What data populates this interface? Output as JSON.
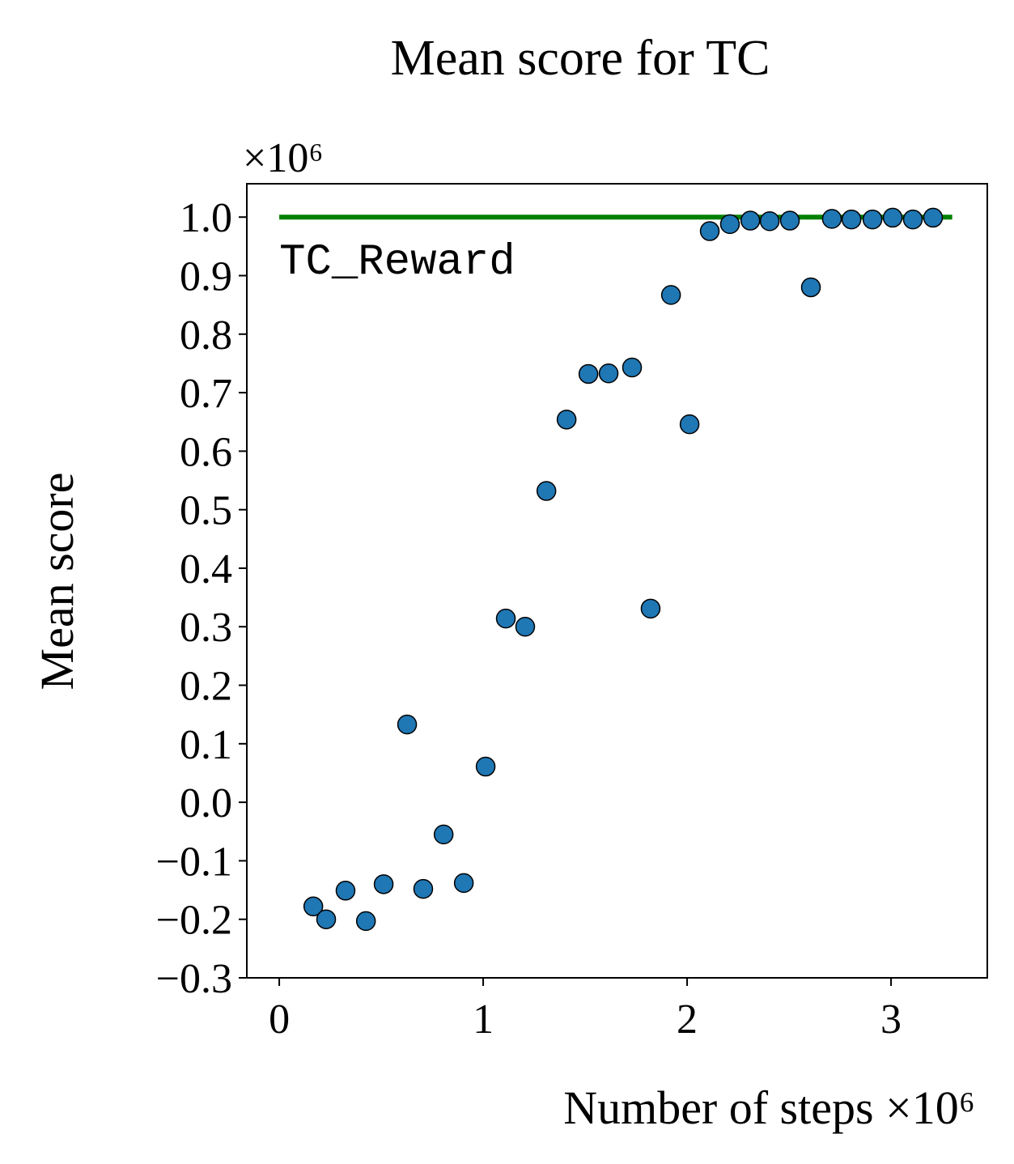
{
  "chart_data": {
    "type": "scatter",
    "title": "Mean score for TC",
    "x_label": "Number of steps ×10⁶",
    "y_label": "Mean score",
    "y_offset_text": "×10⁶",
    "xlim": [
      -0.159,
      3.472
    ],
    "ylim": [
      -0.3,
      1.057
    ],
    "xticks": [
      0,
      1,
      2,
      3
    ],
    "yticks": [
      {
        "value": -0.3,
        "label": "−0.3"
      },
      {
        "value": -0.2,
        "label": "−0.2"
      },
      {
        "value": -0.1,
        "label": "−0.1"
      },
      {
        "value": 0,
        "label": "0.0"
      },
      {
        "value": 0.1,
        "label": "0.1"
      },
      {
        "value": 0.2,
        "label": "0.2"
      },
      {
        "value": 0.3,
        "label": "0.3"
      },
      {
        "value": 0.4,
        "label": "0.4"
      },
      {
        "value": 0.5,
        "label": "0.5"
      },
      {
        "value": 0.6,
        "label": "0.6"
      },
      {
        "value": 0.7,
        "label": "0.7"
      },
      {
        "value": 0.8,
        "label": "0.8"
      },
      {
        "value": 0.9,
        "label": "0.9"
      },
      {
        "value": 1,
        "label": "1.0"
      }
    ],
    "color": "#1f77b4",
    "x": [
      0.167,
      0.23,
      0.325,
      0.425,
      0.512,
      0.627,
      0.706,
      0.806,
      0.905,
      1.012,
      1.111,
      1.206,
      1.31,
      1.409,
      1.516,
      1.615,
      1.73,
      1.821,
      1.921,
      2.012,
      2.111,
      2.21,
      2.31,
      2.405,
      2.504,
      2.607,
      2.71,
      2.806,
      2.909,
      3.008,
      3.107,
      3.206
    ],
    "values": [
      -0.178,
      -0.2,
      -0.151,
      -0.203,
      -0.14,
      0.133,
      -0.148,
      -0.055,
      -0.138,
      0.061,
      0.314,
      0.3,
      0.532,
      0.654,
      0.732,
      0.733,
      0.743,
      0.331,
      0.867,
      0.646,
      0.976,
      0.988,
      0.994,
      0.993,
      0.994,
      0.88,
      0.997,
      0.996,
      0.996,
      0.999,
      0.996,
      0.999
    ],
    "reference_line": {
      "y": 1,
      "xmin": 0,
      "xmax": 3.3,
      "label": "TC_Reward",
      "color": "#008000"
    }
  }
}
